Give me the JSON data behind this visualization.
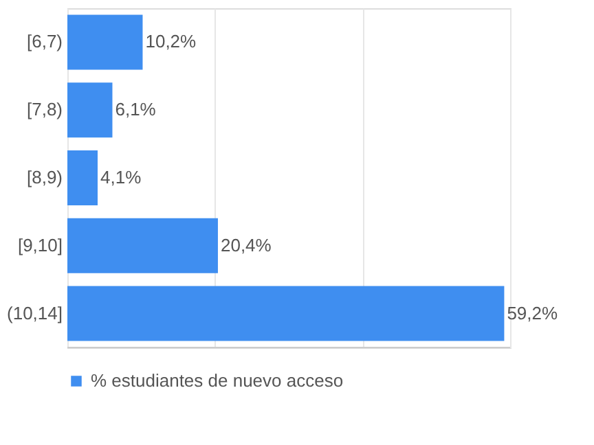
{
  "chart_data": {
    "type": "bar",
    "orientation": "horizontal",
    "categories": [
      "[6,7)",
      "[7,8)",
      "[8,9)",
      "[9,10]",
      "(10,14]"
    ],
    "series": [
      {
        "name": "% estudiantes de nuevo acceso",
        "color": "#3f8ef0",
        "values": [
          10.2,
          6.1,
          4.1,
          20.4,
          59.2
        ],
        "value_labels": [
          "10,2%",
          "6,1%",
          "4,1%",
          "20,4%",
          "59,2%"
        ]
      }
    ],
    "xlim": [
      0,
      60
    ],
    "xticks": [
      {
        "value": 0,
        "label": null
      },
      {
        "value": 20,
        "label": null
      },
      {
        "value": 40,
        "label": null
      },
      {
        "value": 60,
        "label": null
      }
    ],
    "grid": "x",
    "tick_labels": "y",
    "legend": "bottom"
  }
}
